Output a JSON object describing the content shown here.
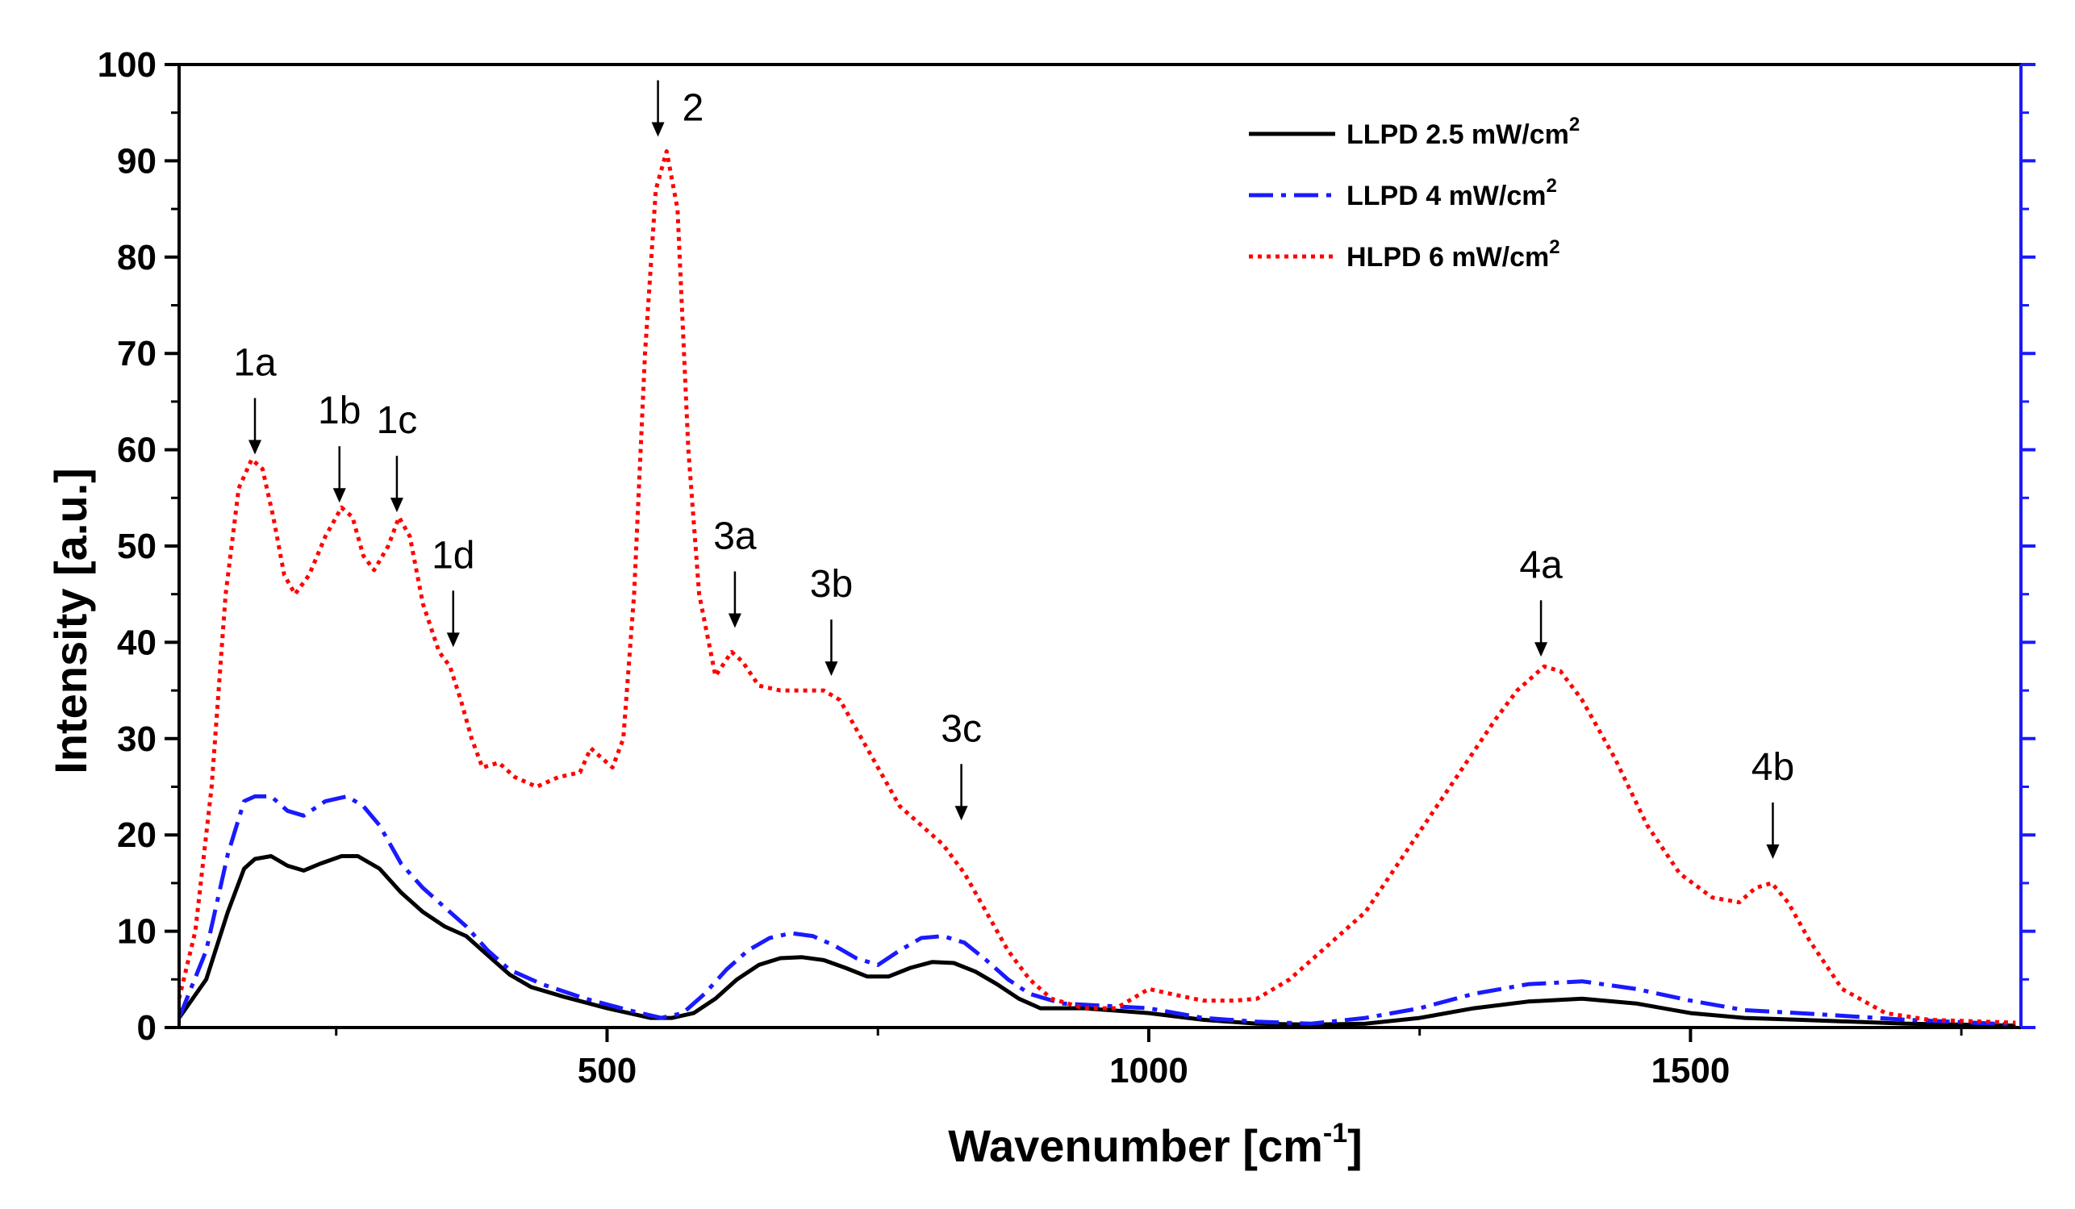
{
  "chart_data": {
    "type": "line",
    "xlabel": "Wavenumber [cm",
    "xlabel_sup": "-1",
    "xlabel_close": "]",
    "ylabel": "Intensity [a.u.]",
    "xlim": [
      105,
      1805
    ],
    "ylim": [
      0,
      100
    ],
    "xticks": [
      500,
      1000,
      1500
    ],
    "yticks": [
      0,
      10,
      20,
      30,
      40,
      50,
      60,
      70,
      80,
      90,
      100
    ],
    "grid": false,
    "legend_position": "top-right",
    "colors": {
      "llpd25": "#000000",
      "llpd4": "#1a1aff",
      "hlpd6": "#ff0000",
      "right_axis": "#1a1aff"
    },
    "series": [
      {
        "name": "LLPD 2.5 mW/cm",
        "unit_sup": "2",
        "style": "solid",
        "points": [
          [
            105,
            1
          ],
          [
            130,
            5
          ],
          [
            150,
            12
          ],
          [
            165,
            16.5
          ],
          [
            175,
            17.5
          ],
          [
            190,
            17.8
          ],
          [
            205,
            16.8
          ],
          [
            220,
            16.3
          ],
          [
            235,
            17
          ],
          [
            255,
            17.8
          ],
          [
            270,
            17.8
          ],
          [
            290,
            16.5
          ],
          [
            310,
            14
          ],
          [
            330,
            12
          ],
          [
            350,
            10.5
          ],
          [
            370,
            9.5
          ],
          [
            390,
            7.5
          ],
          [
            410,
            5.5
          ],
          [
            430,
            4.2
          ],
          [
            460,
            3.2
          ],
          [
            500,
            2
          ],
          [
            540,
            1
          ],
          [
            560,
            1
          ],
          [
            580,
            1.5
          ],
          [
            600,
            3
          ],
          [
            620,
            5
          ],
          [
            640,
            6.5
          ],
          [
            660,
            7.2
          ],
          [
            680,
            7.3
          ],
          [
            700,
            7
          ],
          [
            720,
            6.2
          ],
          [
            740,
            5.3
          ],
          [
            760,
            5.3
          ],
          [
            780,
            6.2
          ],
          [
            800,
            6.8
          ],
          [
            820,
            6.7
          ],
          [
            840,
            5.8
          ],
          [
            860,
            4.5
          ],
          [
            880,
            3
          ],
          [
            900,
            2
          ],
          [
            940,
            2
          ],
          [
            1000,
            1.5
          ],
          [
            1050,
            0.8
          ],
          [
            1100,
            0.4
          ],
          [
            1150,
            0.3
          ],
          [
            1200,
            0.4
          ],
          [
            1250,
            1
          ],
          [
            1300,
            2
          ],
          [
            1350,
            2.7
          ],
          [
            1400,
            3
          ],
          [
            1450,
            2.5
          ],
          [
            1500,
            1.5
          ],
          [
            1550,
            1
          ],
          [
            1600,
            0.8
          ],
          [
            1700,
            0.4
          ],
          [
            1800,
            0.2
          ]
        ]
      },
      {
        "name": "LLPD 4 mW/cm",
        "unit_sup": "2",
        "style": "dashdot",
        "points": [
          [
            105,
            1
          ],
          [
            130,
            8
          ],
          [
            150,
            18
          ],
          [
            165,
            23.5
          ],
          [
            175,
            24
          ],
          [
            190,
            24
          ],
          [
            205,
            22.5
          ],
          [
            220,
            22
          ],
          [
            240,
            23.5
          ],
          [
            260,
            24
          ],
          [
            275,
            23
          ],
          [
            290,
            21
          ],
          [
            310,
            17
          ],
          [
            330,
            14.5
          ],
          [
            350,
            12.5
          ],
          [
            370,
            10.5
          ],
          [
            390,
            8
          ],
          [
            410,
            6
          ],
          [
            440,
            4.5
          ],
          [
            480,
            3
          ],
          [
            520,
            1.8
          ],
          [
            550,
            1
          ],
          [
            570,
            1.5
          ],
          [
            590,
            3.5
          ],
          [
            610,
            6
          ],
          [
            630,
            8
          ],
          [
            650,
            9.3
          ],
          [
            670,
            9.8
          ],
          [
            690,
            9.5
          ],
          [
            710,
            8.5
          ],
          [
            730,
            7.2
          ],
          [
            750,
            6.5
          ],
          [
            770,
            8
          ],
          [
            790,
            9.3
          ],
          [
            810,
            9.5
          ],
          [
            830,
            8.8
          ],
          [
            850,
            7
          ],
          [
            870,
            5
          ],
          [
            890,
            3.5
          ],
          [
            920,
            2.5
          ],
          [
            1000,
            2
          ],
          [
            1050,
            1
          ],
          [
            1100,
            0.6
          ],
          [
            1150,
            0.4
          ],
          [
            1200,
            1
          ],
          [
            1250,
            2
          ],
          [
            1300,
            3.5
          ],
          [
            1350,
            4.5
          ],
          [
            1400,
            4.8
          ],
          [
            1450,
            4
          ],
          [
            1500,
            2.8
          ],
          [
            1550,
            1.8
          ],
          [
            1600,
            1.5
          ],
          [
            1700,
            0.8
          ],
          [
            1800,
            0.3
          ]
        ]
      },
      {
        "name": "HLPD 6 mW/cm",
        "unit_sup": "2",
        "style": "dotted",
        "points": [
          [
            105,
            3
          ],
          [
            120,
            10
          ],
          [
            135,
            25
          ],
          [
            148,
            45
          ],
          [
            160,
            56
          ],
          [
            172,
            59
          ],
          [
            182,
            58
          ],
          [
            192,
            53
          ],
          [
            202,
            47
          ],
          [
            212,
            45
          ],
          [
            225,
            47
          ],
          [
            240,
            51
          ],
          [
            255,
            54
          ],
          [
            265,
            53
          ],
          [
            275,
            49
          ],
          [
            285,
            47.5
          ],
          [
            298,
            50
          ],
          [
            308,
            53
          ],
          [
            318,
            51
          ],
          [
            330,
            44
          ],
          [
            345,
            39
          ],
          [
            355,
            37.5
          ],
          [
            365,
            34
          ],
          [
            375,
            30
          ],
          [
            385,
            27
          ],
          [
            400,
            27.5
          ],
          [
            415,
            26
          ],
          [
            435,
            25
          ],
          [
            455,
            26
          ],
          [
            475,
            26.5
          ],
          [
            485,
            29
          ],
          [
            495,
            28
          ],
          [
            505,
            27
          ],
          [
            515,
            30
          ],
          [
            525,
            45
          ],
          [
            535,
            70
          ],
          [
            545,
            87
          ],
          [
            555,
            91
          ],
          [
            565,
            85
          ],
          [
            575,
            60
          ],
          [
            585,
            45
          ],
          [
            600,
            36.5
          ],
          [
            615,
            39
          ],
          [
            625,
            38
          ],
          [
            640,
            35.5
          ],
          [
            660,
            35
          ],
          [
            680,
            35
          ],
          [
            700,
            35
          ],
          [
            715,
            34
          ],
          [
            730,
            31
          ],
          [
            750,
            27
          ],
          [
            770,
            23
          ],
          [
            790,
            21
          ],
          [
            810,
            19
          ],
          [
            830,
            16
          ],
          [
            850,
            12
          ],
          [
            870,
            8
          ],
          [
            890,
            5
          ],
          [
            910,
            3
          ],
          [
            940,
            2
          ],
          [
            970,
            2
          ],
          [
            1000,
            4
          ],
          [
            1020,
            3.5
          ],
          [
            1050,
            2.8
          ],
          [
            1080,
            2.8
          ],
          [
            1100,
            3
          ],
          [
            1130,
            5
          ],
          [
            1160,
            8
          ],
          [
            1200,
            12
          ],
          [
            1230,
            17
          ],
          [
            1260,
            22
          ],
          [
            1290,
            27
          ],
          [
            1320,
            32
          ],
          [
            1340,
            35
          ],
          [
            1365,
            37.5
          ],
          [
            1380,
            37
          ],
          [
            1400,
            34
          ],
          [
            1430,
            28
          ],
          [
            1460,
            21
          ],
          [
            1490,
            16
          ],
          [
            1520,
            13.5
          ],
          [
            1545,
            13
          ],
          [
            1560,
            14.5
          ],
          [
            1575,
            15
          ],
          [
            1590,
            13
          ],
          [
            1610,
            9
          ],
          [
            1640,
            4
          ],
          [
            1680,
            1.5
          ],
          [
            1720,
            0.8
          ],
          [
            1800,
            0.5
          ]
        ]
      }
    ],
    "annotations": [
      {
        "label": "1a",
        "x": 175,
        "y": 59
      },
      {
        "label": "1b",
        "x": 253,
        "y": 54
      },
      {
        "label": "1c",
        "x": 306,
        "y": 53
      },
      {
        "label": "1d",
        "x": 358,
        "y": 39
      },
      {
        "label": "2",
        "x": 547,
        "y": 92
      },
      {
        "label": "3a",
        "x": 618,
        "y": 41
      },
      {
        "label": "3b",
        "x": 707,
        "y": 36
      },
      {
        "label": "3c",
        "x": 827,
        "y": 21
      },
      {
        "label": "4a",
        "x": 1362,
        "y": 38
      },
      {
        "label": "4b",
        "x": 1576,
        "y": 17
      }
    ]
  }
}
